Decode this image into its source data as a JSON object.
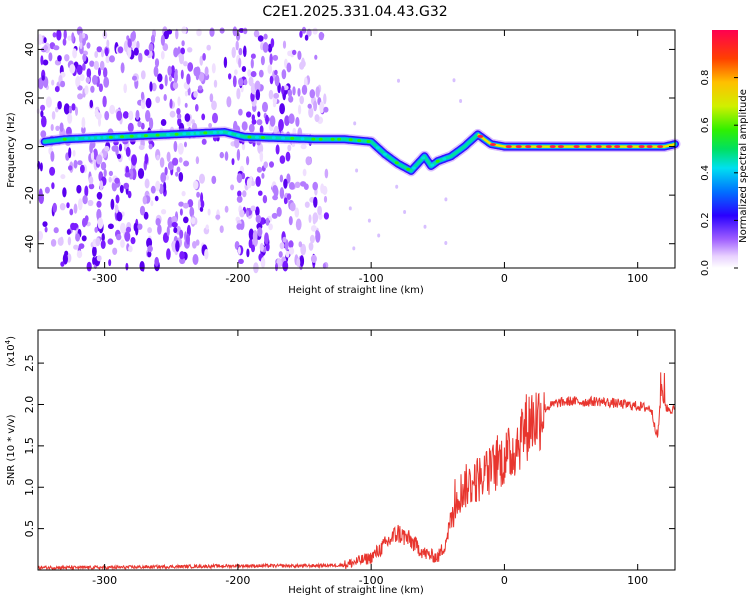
{
  "title": "C2E1.2025.331.04.43.G32",
  "chart_data": [
    {
      "type": "heatmap",
      "xlabel": "Height of straight line (km)",
      "ylabel": "Frequency (Hz)",
      "xlim": [
        -350,
        128
      ],
      "ylim": [
        -50,
        48
      ],
      "xticks": [
        -300,
        -200,
        -100,
        0,
        100
      ],
      "yticks": [
        -40,
        -20,
        0,
        20,
        40
      ],
      "colorbar": {
        "label": "Normalized spectral amplitude",
        "range": [
          0,
          1
        ],
        "ticks": [
          "0.0",
          "0.2",
          "0.4",
          "0.6",
          "0.8"
        ],
        "colormap": [
          "#ffffff",
          "#d6b4ff",
          "#7a1cff",
          "#2a00ff",
          "#0090ff",
          "#00e5e5",
          "#00e000",
          "#ffe000",
          "#ff6000",
          "#ff0040"
        ]
      },
      "ridge": {
        "description_points_x": [
          -345,
          -330,
          -210,
          -195,
          -140,
          -120,
          -100,
          -90,
          -80,
          -70,
          -60,
          -55,
          -50,
          -40,
          -30,
          -20,
          -10,
          0,
          20,
          60,
          100,
          120,
          128
        ],
        "description_points_freq": [
          2,
          3,
          6,
          4,
          3,
          3,
          2,
          -3,
          -7,
          -10,
          -4,
          -8,
          -6,
          -4,
          0,
          5,
          1,
          0,
          0,
          0,
          0,
          0,
          1
        ],
        "peak_amplitude_x_start": -20
      }
    },
    {
      "type": "line",
      "xlabel": "Height of straight line (km)",
      "ylabel": "SNR (10 * v/v)",
      "scale_label": "(x10",
      "scale_exp": "4",
      "xlim": [
        -350,
        128
      ],
      "ylim": [
        0,
        2.9
      ],
      "xticks": [
        -300,
        -200,
        -100,
        0,
        100
      ],
      "yticks": [
        0.5,
        1.0,
        1.5,
        2.0,
        2.5
      ],
      "ytick_labels": [
        "0.5",
        "1.0",
        "1.5",
        "2.0",
        "2.5"
      ],
      "color": "#e8352e",
      "series": [
        {
          "x": [
            -350,
            -300,
            -250,
            -200,
            -150,
            -120,
            -100,
            -90,
            -80,
            -70,
            -60,
            -50,
            -45,
            -40,
            -35,
            -30,
            -25,
            -20,
            -15,
            -10,
            -5,
            0,
            5,
            10,
            15,
            20,
            25,
            30,
            40,
            50,
            60,
            70,
            80,
            90,
            100,
            110,
            115,
            118,
            120,
            122,
            125,
            128
          ],
          "y": [
            0.03,
            0.03,
            0.04,
            0.05,
            0.05,
            0.06,
            0.15,
            0.3,
            0.45,
            0.35,
            0.2,
            0.15,
            0.3,
            0.6,
            0.9,
            1.0,
            1.05,
            1.1,
            1.15,
            1.2,
            1.3,
            1.35,
            1.4,
            1.55,
            1.7,
            1.8,
            1.85,
            1.95,
            2.02,
            2.04,
            2.03,
            2.04,
            2.02,
            2.0,
            1.98,
            1.95,
            1.6,
            2.2,
            2.0,
            1.95,
            1.95,
            1.93
          ]
        }
      ]
    }
  ]
}
